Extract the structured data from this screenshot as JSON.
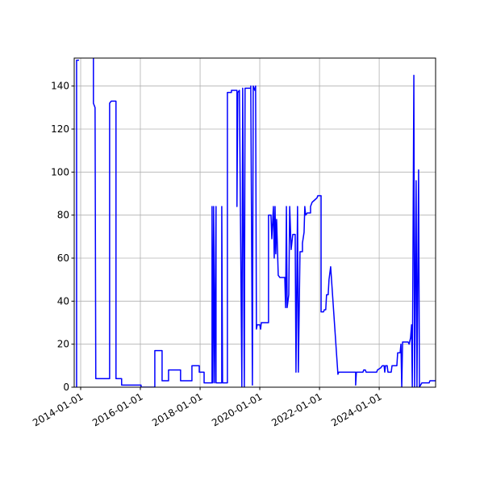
{
  "chart_data": {
    "type": "line",
    "x": [
      "2013-11-12",
      "2013-11-12",
      "2013-12-12",
      "2014-03-01",
      "2014-06-06",
      "2014-06-06",
      "2014-06-16",
      "2014-06-26",
      "2014-07-05",
      "2014-12-21",
      "2014-12-21",
      "2015-01-10",
      "2015-03-09",
      "2015-03-09",
      "2015-05-17",
      "2015-05-17",
      "2016-01-10",
      "2016-01-10",
      "2016-06-26",
      "2016-06-26",
      "2016-09-23",
      "2016-09-23",
      "2016-12-11",
      "2016-12-11",
      "2017-05-07",
      "2017-05-07",
      "2017-09-23",
      "2017-09-23",
      "2017-12-22",
      "2017-12-22",
      "2018-02-19",
      "2018-02-19",
      "2018-05-27",
      "2018-05-27",
      "2018-06-06",
      "2018-06-16",
      "2018-06-26",
      "2018-07-15",
      "2018-07-15",
      "2018-09-23",
      "2018-09-23",
      "2018-10-03",
      "2018-12-01",
      "2018-12-01",
      "2019-01-19",
      "2019-01-19",
      "2019-03-28",
      "2019-03-28",
      "2019-04-07",
      "2019-04-27",
      "2019-05-27",
      "2019-06-06",
      "2019-06-26",
      "2019-07-05",
      "2019-09-13",
      "2019-09-13",
      "2019-10-03",
      "2019-10-13",
      "2019-11-01",
      "2019-11-11",
      "2019-11-21",
      "2019-12-01",
      "2020-01-01",
      "2020-01-11",
      "2020-01-20",
      "2020-04-17",
      "2020-04-17",
      "2020-05-17",
      "2020-05-27",
      "2020-06-16",
      "2020-06-26",
      "2020-07-06",
      "2020-07-15",
      "2020-07-25",
      "2020-08-14",
      "2020-09-03",
      "2020-11-02",
      "2020-11-12",
      "2020-11-22",
      "2020-12-01",
      "2020-12-21",
      "2021-01-01",
      "2021-01-19",
      "2021-02-08",
      "2021-03-09",
      "2021-03-19",
      "2021-04-07",
      "2021-04-17",
      "2021-05-07",
      "2021-06-06",
      "2021-06-06",
      "2021-06-26",
      "2021-07-05",
      "2021-07-15",
      "2021-08-04",
      "2021-09-13",
      "2021-09-13",
      "2021-10-03",
      "2021-11-02",
      "2021-12-01",
      "2021-12-11",
      "2022-01-20",
      "2022-01-20",
      "2022-02-19",
      "2022-03-01",
      "2022-03-18",
      "2022-03-28",
      "2022-04-17",
      "2022-04-27",
      "2022-05-17",
      "2022-08-14",
      "2022-08-24",
      "2023-03-19",
      "2023-03-19",
      "2023-03-28",
      "2023-06-16",
      "2023-06-26",
      "2023-07-15",
      "2023-07-25",
      "2023-12-01",
      "2023-12-11",
      "2024-01-20",
      "2024-02-09",
      "2024-03-01",
      "2024-03-09",
      "2024-03-18",
      "2024-04-08",
      "2024-04-17",
      "2024-05-27",
      "2024-06-06",
      "2024-08-04",
      "2024-08-14",
      "2024-09-13",
      "2024-09-23",
      "2024-10-03",
      "2024-10-13",
      "2024-12-21",
      "2025-01-01",
      "2025-01-19",
      "2025-01-31",
      "2025-02-09",
      "2025-02-28",
      "2025-03-09",
      "2025-03-28",
      "2025-04-07",
      "2025-04-27",
      "2025-05-07",
      "2025-06-06",
      "2025-09-03",
      "2025-09-13",
      "2025-11-21"
    ],
    "series": [
      {
        "color": "#0000ff",
        "values": [
          0,
          152,
          152,
          null,
          153,
          132,
          131,
          130,
          4,
          4,
          132,
          133,
          133,
          4,
          4,
          1,
          1,
          0,
          0,
          17,
          17,
          3,
          3,
          8,
          8,
          3,
          3,
          10,
          10,
          7,
          7,
          2,
          2,
          84,
          2,
          84,
          2,
          84,
          2,
          2,
          84,
          2,
          2,
          137,
          137,
          138,
          138,
          84,
          137,
          138,
          0,
          139,
          0,
          139,
          139,
          140,
          1,
          140,
          138,
          140,
          27,
          29,
          29,
          27,
          30,
          30,
          80,
          80,
          69,
          84,
          60,
          84,
          62,
          78,
          52,
          51,
          51,
          37,
          84,
          37,
          43,
          84,
          64,
          71,
          71,
          7,
          84,
          7,
          63,
          63,
          67,
          72,
          84,
          80,
          81,
          81,
          84,
          86,
          87,
          88,
          89,
          89,
          35,
          35,
          36,
          36,
          43,
          43,
          50,
          56,
          6,
          7,
          7,
          1,
          7,
          7,
          8,
          8,
          7,
          7,
          8,
          9,
          10,
          10,
          7,
          10,
          10,
          7,
          7,
          10,
          10,
          16,
          16,
          20,
          0,
          21,
          21,
          20,
          23,
          29,
          0,
          145,
          0,
          96,
          0,
          101,
          0,
          2,
          2,
          3,
          3
        ]
      }
    ],
    "xlim": [
      "2013-10-14",
      "2025-11-21"
    ],
    "xticks": [
      "2014-01-01",
      "2016-01-01",
      "2018-01-01",
      "2020-01-01",
      "2022-01-01",
      "2024-01-01"
    ],
    "ylim": [
      0,
      153
    ],
    "yticks": [
      0,
      20,
      40,
      60,
      80,
      100,
      120,
      140
    ],
    "grid": true
  }
}
